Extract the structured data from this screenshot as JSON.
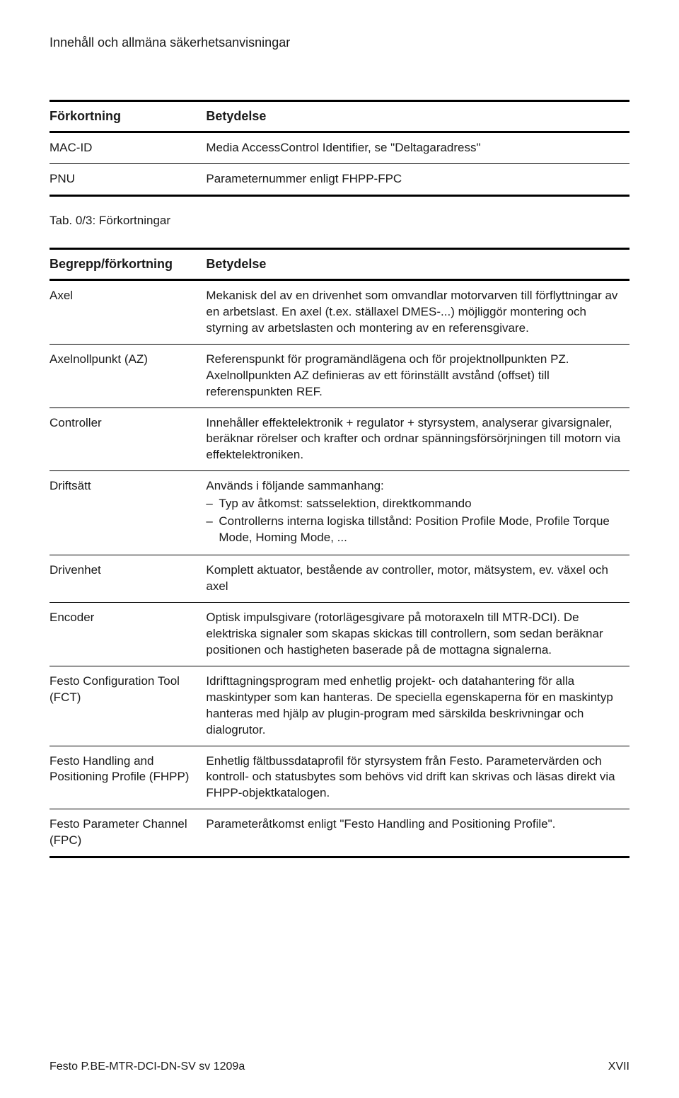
{
  "header_title": "Innehåll och allmäna säkerhetsanvisningar",
  "table1": {
    "col1_header": "Förkortning",
    "col2_header": "Betydelse",
    "rows": [
      {
        "abbr": "MAC-ID",
        "meaning": "Media AccessControl Identifier, se \"Deltagaradress\""
      },
      {
        "abbr": "PNU",
        "meaning": "Parameternummer enligt FHPP-FPC"
      }
    ]
  },
  "caption1": "Tab. 0/3:   Förkortningar",
  "table2": {
    "col1_header": "Begrepp/förkortning",
    "col2_header": "Betydelse",
    "rows": [
      {
        "term": "Axel",
        "meaning": "Mekanisk del av en drivenhet som omvandlar motorvarven till förflyttningar av en arbetslast. En axel (t.ex. ställaxel DMES-...) möjliggör montering och styrning av arbetslasten och montering av en referensgivare."
      },
      {
        "term": "Axelnollpunkt (AZ)",
        "meaning": "Referenspunkt för programändlägena och för projektnollpunkten PZ. Axelnollpunkten AZ definieras av ett förinställt avstånd (offset) till referenspunkten REF."
      },
      {
        "term": "Controller",
        "meaning": "Innehåller effektelektronik + regulator + styrsystem, analyserar givarsignaler, beräknar rörelser och krafter och ordnar spänningsförsörjningen till motorn via effektelektroniken."
      },
      {
        "term": "Driftsätt",
        "meaning_intro": "Används i följande sammanhang:",
        "meaning_items": [
          "Typ av åtkomst: satsselektion, direktkommando",
          "Controllerns interna logiska tillstånd: Position Profile Mode, Profile Torque Mode, Homing Mode, ..."
        ]
      },
      {
        "term": "Drivenhet",
        "meaning": "Komplett aktuator, bestående av controller, motor, mätsystem, ev. växel och axel"
      },
      {
        "term": "Encoder",
        "meaning": "Optisk impulsgivare (rotorlägesgivare på motoraxeln till MTR-DCI). De elektriska signaler som skapas skickas till controllern, som sedan beräknar positionen och hastigheten baserade på de mottagna signalerna."
      },
      {
        "term": "Festo Configuration Tool (FCT)",
        "meaning": "Idrifttagningsprogram med enhetlig projekt- och datahantering för alla maskintyper som kan hanteras. De speciella egenskaperna för en maskintyp hanteras med hjälp av plugin-program med särskilda beskrivningar och dialogrutor."
      },
      {
        "term": "Festo Handling and Positioning Profile (FHPP)",
        "meaning": "Enhetlig fältbussdataprofil för styrsystem från Festo. Parametervärden och kontroll- och statusbytes som behövs vid drift kan skrivas och läsas direkt via FHPP-objektkatalogen."
      },
      {
        "term": "Festo Parameter Channel (FPC)",
        "meaning": "Parameteråtkomst enligt \"Festo Handling and Positioning Profile\"."
      }
    ]
  },
  "footer_left": "Festo P.BE-MTR-DCI-DN-SV sv 1209a",
  "footer_right": "XVII"
}
